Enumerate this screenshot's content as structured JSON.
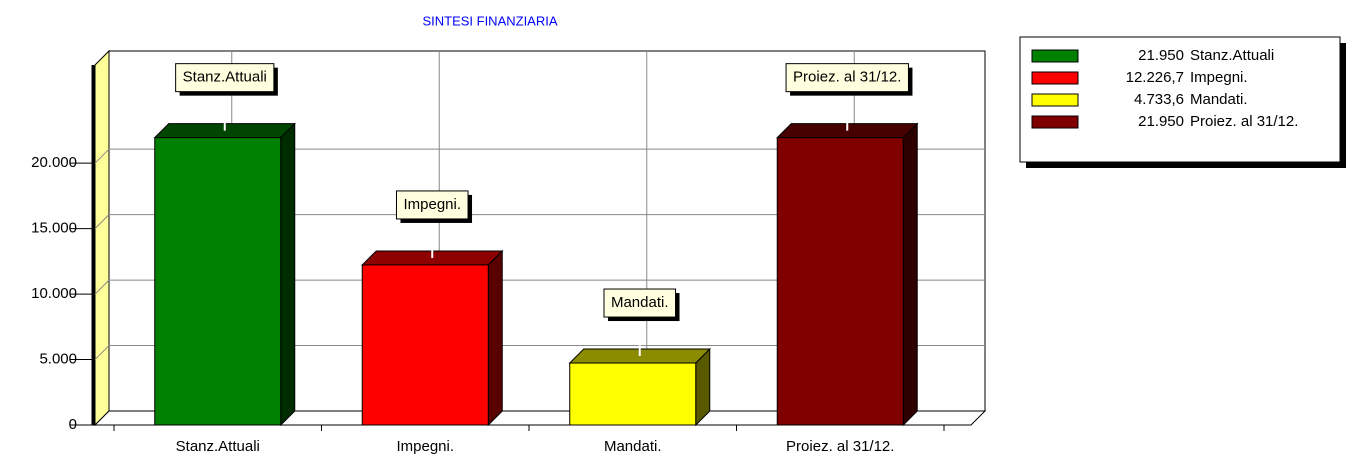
{
  "chart_data": {
    "type": "bar3d",
    "title": "SINTESI FINANZIARIA",
    "categories": [
      "Stanz.Attuali",
      "Impegni.",
      "Mandati.",
      "Proiez. al 31/12."
    ],
    "values": [
      21950,
      12226.7,
      4733.6,
      21950
    ],
    "value_labels": [
      "21.950",
      "12.226,7",
      "4.733,6",
      "21.950"
    ],
    "colors": [
      "#008000",
      "#ff0000",
      "#ffff00",
      "#800000"
    ],
    "ylim": [
      0,
      27500
    ],
    "yticks": [
      0,
      {
        "value": 5000,
        "label": "5.000"
      },
      {
        "value": 10000,
        "label": "10.000"
      },
      {
        "value": 15000,
        "label": "15.000"
      },
      {
        "value": 20000,
        "label": "20.000"
      }
    ],
    "grid": true,
    "legend": "top-right"
  }
}
